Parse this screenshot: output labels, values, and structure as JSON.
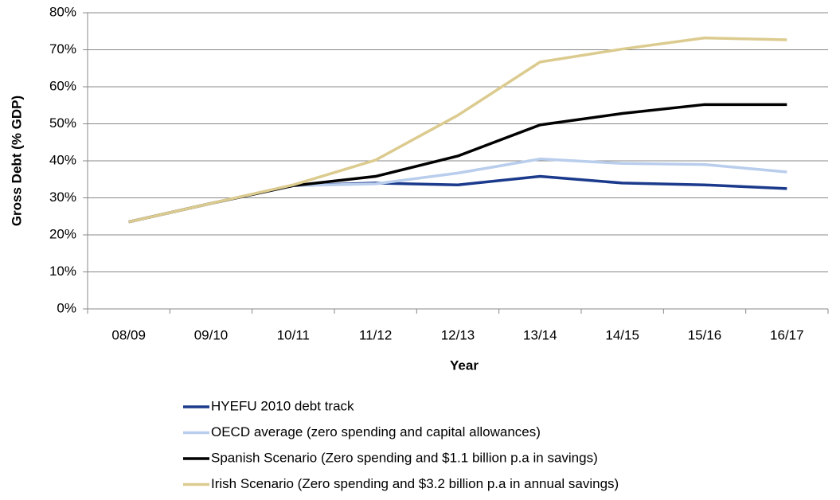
{
  "chart_data": {
    "type": "line",
    "x_label": "Year",
    "y_label": "Gross Debt (% GDP)",
    "categories": [
      "08/09",
      "09/10",
      "10/11",
      "11/12",
      "12/13",
      "13/14",
      "14/15",
      "15/16",
      "16/17"
    ],
    "series": [
      {
        "name": "HYEFU 2010 debt track",
        "color": "#1b3a8c",
        "values": [
          23.5,
          28.5,
          33.3,
          34,
          33.5,
          35.8,
          34,
          33.5,
          32.5
        ]
      },
      {
        "name": "OECD average (zero spending and capital allowances)",
        "color": "#b9cdec",
        "values": [
          23.5,
          28.5,
          33.3,
          33.8,
          36.7,
          40.5,
          39.3,
          39,
          37
        ]
      },
      {
        "name": "Spanish Scenario (Zero spending and $1.1 billion p.a in savings)",
        "color": "#000000",
        "values": [
          23.5,
          28.5,
          33.3,
          35.8,
          41.3,
          49.7,
          52.8,
          55.2,
          55.2
        ]
      },
      {
        "name": "Irish Scenario (Zero spending and $3.2 billion p.a in annual savings)",
        "color": "#dccb8f",
        "values": [
          23.5,
          28.5,
          33.5,
          40.2,
          52.3,
          66.7,
          70.2,
          73.2,
          72.7
        ]
      }
    ],
    "ylim": [
      0,
      80
    ],
    "yticks": [
      {
        "value": 0,
        "label": "0%"
      },
      {
        "value": 10,
        "label": "10%"
      },
      {
        "value": 20,
        "label": "20%"
      },
      {
        "value": 30,
        "label": "30%"
      },
      {
        "value": 40,
        "label": "40%"
      },
      {
        "value": 50,
        "label": "50%"
      },
      {
        "value": 60,
        "label": "60%"
      },
      {
        "value": 70,
        "label": "70%"
      },
      {
        "value": 80,
        "label": "80%"
      }
    ],
    "grid": true,
    "legend": "bottom"
  }
}
